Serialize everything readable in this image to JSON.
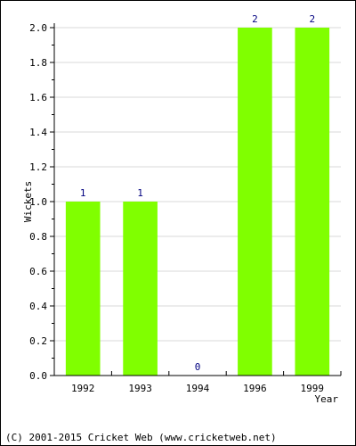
{
  "chart_data": {
    "type": "bar",
    "categories": [
      "1992",
      "1993",
      "1994",
      "1996",
      "1999"
    ],
    "values": [
      1,
      1,
      0,
      2,
      2
    ],
    "data_labels": [
      "1",
      "1",
      "0",
      "2",
      "2"
    ],
    "title": "",
    "xlabel": "Year",
    "ylabel": "Wickets",
    "ylim": [
      0,
      2.0
    ],
    "yticks": [
      "0.0",
      "0.2",
      "0.4",
      "0.6",
      "0.8",
      "1.0",
      "1.2",
      "1.4",
      "1.6",
      "1.8",
      "2.0"
    ],
    "grid": true,
    "legend": "none",
    "colors": {
      "bar": "#80ff00",
      "label": "#000080",
      "grid": "#d8d8d8",
      "axis": "#000000"
    }
  },
  "footer": {
    "text": "(C) 2001-2015 Cricket Web (www.cricketweb.net)"
  }
}
